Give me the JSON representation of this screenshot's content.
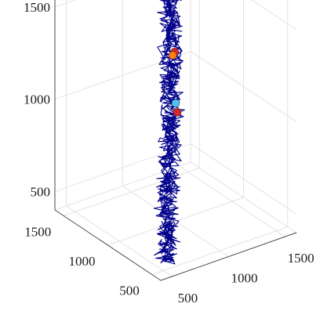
{
  "chart_data": {
    "type": "line",
    "title": "",
    "xlabel": "",
    "ylabel": "",
    "zlabel": "",
    "view": "3d",
    "grid": true,
    "legend": "none",
    "axes": {
      "x": {
        "range": [
          400,
          1600
        ],
        "ticks": [
          500,
          1000,
          1500
        ],
        "tick_labels": [
          "500",
          "1000",
          "1500"
        ]
      },
      "y": {
        "range": [
          400,
          1600
        ],
        "ticks": [
          500,
          1000,
          1500
        ],
        "tick_labels": [
          "500",
          "1000",
          "1500"
        ]
      },
      "z": {
        "range": [
          400,
          1750
        ],
        "ticks": [
          500,
          1000,
          1500
        ],
        "tick_labels": [
          "500",
          "1000",
          "1500"
        ]
      }
    },
    "series": [
      {
        "style": "random-walk trajectory",
        "color": "#00008b",
        "path_anchors": [
          [
            520,
            500,
            440
          ],
          [
            560,
            540,
            520
          ],
          [
            600,
            580,
            600
          ],
          [
            640,
            640,
            700
          ],
          [
            700,
            700,
            800
          ],
          [
            760,
            760,
            900
          ],
          [
            800,
            800,
            1000
          ],
          [
            840,
            840,
            1100
          ],
          [
            860,
            880,
            1200
          ],
          [
            880,
            900,
            1300
          ],
          [
            900,
            930,
            1400
          ],
          [
            920,
            950,
            1500
          ],
          [
            930,
            970,
            1600
          ],
          [
            950,
            990,
            1700
          ]
        ]
      }
    ],
    "markers": [
      {
        "name": "",
        "color": "#d62728",
        "x": 960,
        "y": 960,
        "z": 1340
      },
      {
        "name": "",
        "color": "#ff7f0e",
        "x": 950,
        "y": 970,
        "z": 1320
      },
      {
        "name": "",
        "color": "#4fc3f7",
        "x": 1000,
        "y": 1000,
        "z": 1040
      },
      {
        "name": "",
        "color": "#d62728",
        "x": 1010,
        "y": 995,
        "z": 990
      }
    ]
  }
}
